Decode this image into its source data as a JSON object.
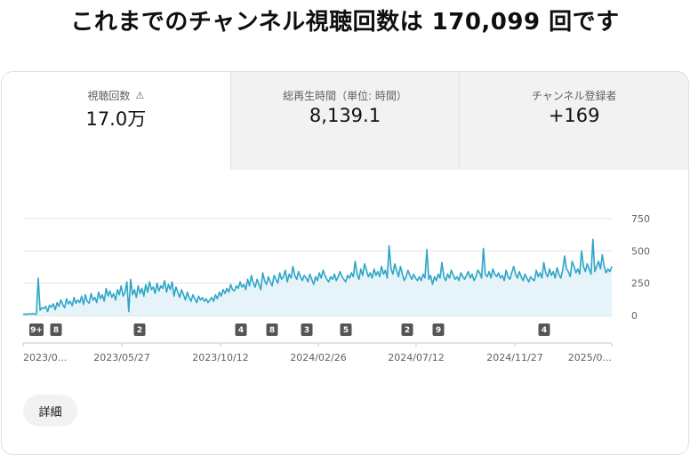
{
  "header": {
    "title": "これまでのチャンネル視聴回数は 170,099 回です"
  },
  "tabs": [
    {
      "label": "視聴回数",
      "value": "17.0万",
      "icon": "warning-icon"
    },
    {
      "label": "総再生時間（単位: 時間）",
      "value": "8,139.1"
    },
    {
      "label": "チャンネル登録者",
      "value": "+169"
    }
  ],
  "chart_data": {
    "type": "area",
    "series": [
      {
        "color": "#2fa5c8",
        "values": [
          10,
          12,
          8,
          14,
          10,
          15,
          12,
          9,
          290,
          40,
          60,
          55,
          70,
          30,
          80,
          65,
          90,
          45,
          100,
          70,
          120,
          85,
          60,
          130,
          90,
          110,
          75,
          140,
          95,
          120,
          100,
          150,
          85,
          160,
          110,
          95,
          170,
          120,
          140,
          100,
          180,
          130,
          160,
          110,
          210,
          150,
          190,
          140,
          170,
          120,
          200,
          160,
          230,
          150,
          180,
          260,
          30,
          280,
          160,
          200,
          140,
          230,
          170,
          210,
          150,
          240,
          180,
          260,
          200,
          220,
          170,
          250,
          190,
          230,
          210,
          270,
          180,
          240,
          200,
          260,
          150,
          220,
          180,
          140,
          200,
          160,
          120,
          180,
          140,
          110,
          160,
          130,
          100,
          150,
          120,
          140,
          110,
          130,
          100,
          120,
          140,
          110,
          160,
          130,
          180,
          150,
          200,
          170,
          210,
          180,
          240,
          200,
          190,
          230,
          210,
          260,
          220,
          240,
          200,
          280,
          230,
          310,
          250,
          220,
          280,
          240,
          200,
          330,
          270,
          240,
          300,
          260,
          230,
          310,
          280,
          250,
          330,
          280,
          300,
          350,
          260,
          320,
          290,
          380,
          310,
          280,
          340,
          300,
          270,
          310,
          290,
          260,
          320,
          280,
          240,
          300,
          270,
          330,
          290,
          350,
          310,
          280,
          260,
          300,
          280,
          320,
          270,
          300,
          340,
          300,
          280,
          260,
          310,
          290,
          330,
          300,
          420,
          320,
          280,
          360,
          310,
          400,
          350,
          300,
          330,
          290,
          360,
          310,
          340,
          300,
          380,
          320,
          350,
          290,
          540,
          360,
          320,
          400,
          350,
          300,
          380,
          320,
          270,
          300,
          350,
          310,
          280,
          320,
          290,
          270,
          300,
          270,
          320,
          290,
          510,
          280,
          310,
          240,
          300,
          270,
          320,
          290,
          410,
          300,
          270,
          320,
          290,
          350,
          310,
          280,
          300,
          270,
          330,
          300,
          280,
          310,
          340,
          290,
          320,
          270,
          300,
          350,
          330,
          290,
          520,
          320,
          300,
          340,
          290,
          360,
          320,
          300,
          330,
          290,
          310,
          270,
          350,
          300,
          280,
          330,
          380,
          320,
          290,
          340,
          300,
          270,
          320,
          290,
          260,
          300,
          280,
          270,
          350,
          300,
          330,
          290,
          410,
          330,
          300,
          360,
          310,
          340,
          290,
          370,
          320,
          290,
          350,
          460,
          360,
          340,
          300,
          420,
          380,
          330,
          360,
          320,
          500,
          380,
          340,
          400,
          360,
          320,
          590,
          340,
          380,
          420,
          360,
          470,
          380,
          330,
          360,
          340,
          380
        ]
      }
    ],
    "yticks": [
      0,
      250,
      500,
      750
    ],
    "ylim": [
      0,
      750
    ],
    "xlabels": [
      "2023/0...",
      "2023/05/27",
      "2023/10/12",
      "2024/02/26",
      "2024/07/12",
      "2024/11/27",
      "2025/0..."
    ],
    "markers": [
      "9+",
      "8",
      "2",
      "4",
      "8",
      "3",
      "5",
      "2",
      "9",
      "4"
    ],
    "grid": true
  },
  "buttons": {
    "details": "詳細"
  }
}
